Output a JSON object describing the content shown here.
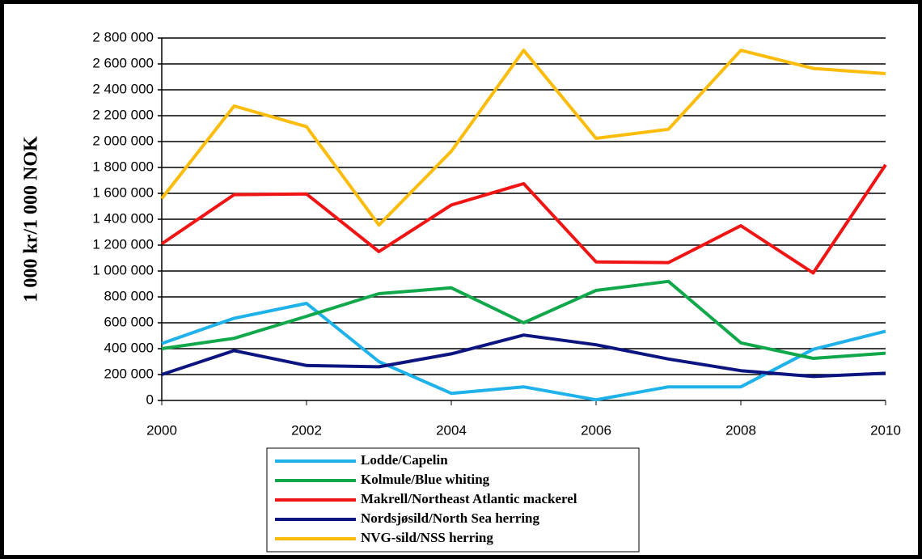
{
  "chart_data": {
    "type": "line",
    "y_axis_label": "1 000 kr/1 000 NOK",
    "x": [
      2000,
      2001,
      2002,
      2003,
      2004,
      2005,
      2006,
      2007,
      2008,
      2009,
      2010
    ],
    "xlim": [
      2000,
      2010
    ],
    "xticks": [
      2000,
      2002,
      2004,
      2006,
      2008,
      2010
    ],
    "ylim": [
      0,
      2800000
    ],
    "yticks": [
      0,
      {
        "value": 200000,
        "label": "200 000"
      },
      {
        "value": 400000,
        "label": "400 000"
      },
      {
        "value": 600000,
        "label": "600 000"
      },
      {
        "value": 800000,
        "label": "800 000"
      },
      {
        "value": 1000000,
        "label": "1 000 000"
      },
      {
        "value": 1200000,
        "label": "1 200 000"
      },
      {
        "value": 1400000,
        "label": "1 400 000"
      },
      {
        "value": 1600000,
        "label": "1 600 000"
      },
      {
        "value": 1800000,
        "label": "1 800 000"
      },
      {
        "value": 2000000,
        "label": "2 000 000"
      },
      {
        "value": 2200000,
        "label": "2 200 000"
      },
      {
        "value": 2400000,
        "label": "2 400 000"
      },
      {
        "value": 2600000,
        "label": "2 600 000"
      },
      {
        "value": 2800000,
        "label": "2 800 000"
      }
    ],
    "grid": true,
    "legend": "bottom",
    "series": [
      {
        "name": "Lodde/Capelin",
        "color": "#1eb1ea",
        "values": [
          440000,
          635000,
          750000,
          300000,
          55000,
          105000,
          5000,
          105000,
          105000,
          395000,
          535000
        ]
      },
      {
        "name": "Kolmule/Blue whiting",
        "color": "#11a84c",
        "values": [
          400000,
          480000,
          650000,
          825000,
          870000,
          600000,
          850000,
          920000,
          445000,
          325000,
          365000
        ]
      },
      {
        "name": "Makrell/Northeast Atlantic mackerel",
        "color": "#f01515",
        "values": [
          1210000,
          1590000,
          1595000,
          1150000,
          1510000,
          1675000,
          1070000,
          1065000,
          1350000,
          985000,
          1820000
        ]
      },
      {
        "name": "Nordsjøsild/North Sea herring",
        "color": "#0c1480",
        "values": [
          200000,
          385000,
          270000,
          260000,
          360000,
          505000,
          430000,
          320000,
          230000,
          185000,
          210000
        ]
      },
      {
        "name": "NVG-sild/NSS herring",
        "color": "#fcbc0c",
        "values": [
          1560000,
          2275000,
          2115000,
          1355000,
          1925000,
          2705000,
          2025000,
          2095000,
          2705000,
          2565000,
          2525000
        ]
      }
    ]
  }
}
